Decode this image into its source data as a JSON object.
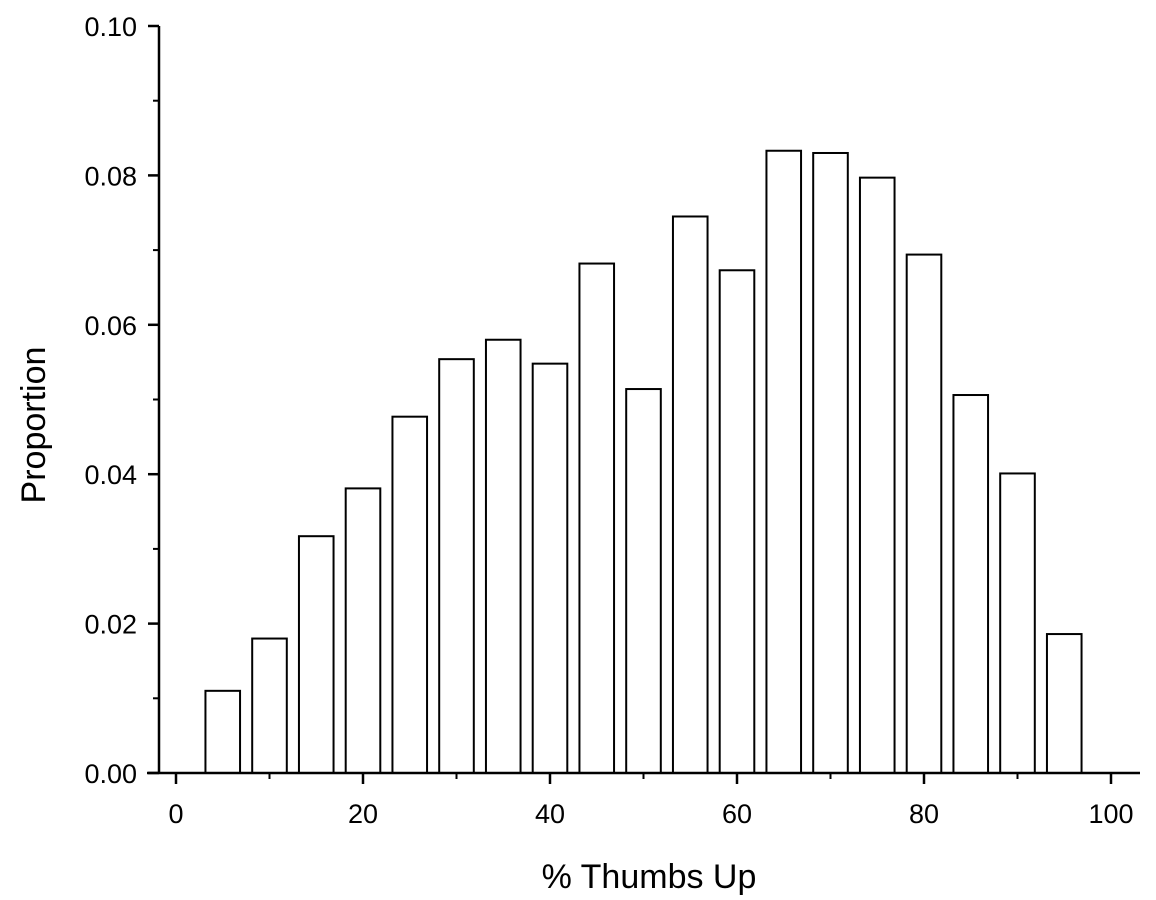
{
  "chart_data": {
    "type": "bar",
    "title": "",
    "xlabel": "% Thumbs Up",
    "ylabel": "Proportion",
    "xlim": [
      0,
      100
    ],
    "ylim": [
      0,
      0.1
    ],
    "x_ticks": [
      0,
      20,
      40,
      60,
      80,
      100
    ],
    "x_tick_labels": [
      "0",
      "20",
      "40",
      "60",
      "80",
      "100"
    ],
    "y_ticks": [
      0,
      0.02,
      0.04,
      0.06,
      0.08,
      0.1
    ],
    "y_tick_labels": [
      "0.00",
      "0.02",
      "0.04",
      "0.06",
      "0.08",
      "0.10"
    ],
    "bin_width": 5,
    "x": [
      5,
      10,
      15,
      20,
      25,
      30,
      35,
      40,
      45,
      50,
      55,
      60,
      65,
      70,
      75,
      80,
      85,
      90,
      95
    ],
    "values": [
      0.011,
      0.018,
      0.0317,
      0.0381,
      0.0477,
      0.0554,
      0.058,
      0.0548,
      0.0682,
      0.0514,
      0.0745,
      0.0673,
      0.0833,
      0.083,
      0.0797,
      0.0694,
      0.0506,
      0.0401,
      0.0186
    ],
    "grid": false,
    "legend": "none",
    "colors": {
      "bar_fill": "#ffffff",
      "bar_stroke": "#000000",
      "axis": "#000000"
    }
  }
}
